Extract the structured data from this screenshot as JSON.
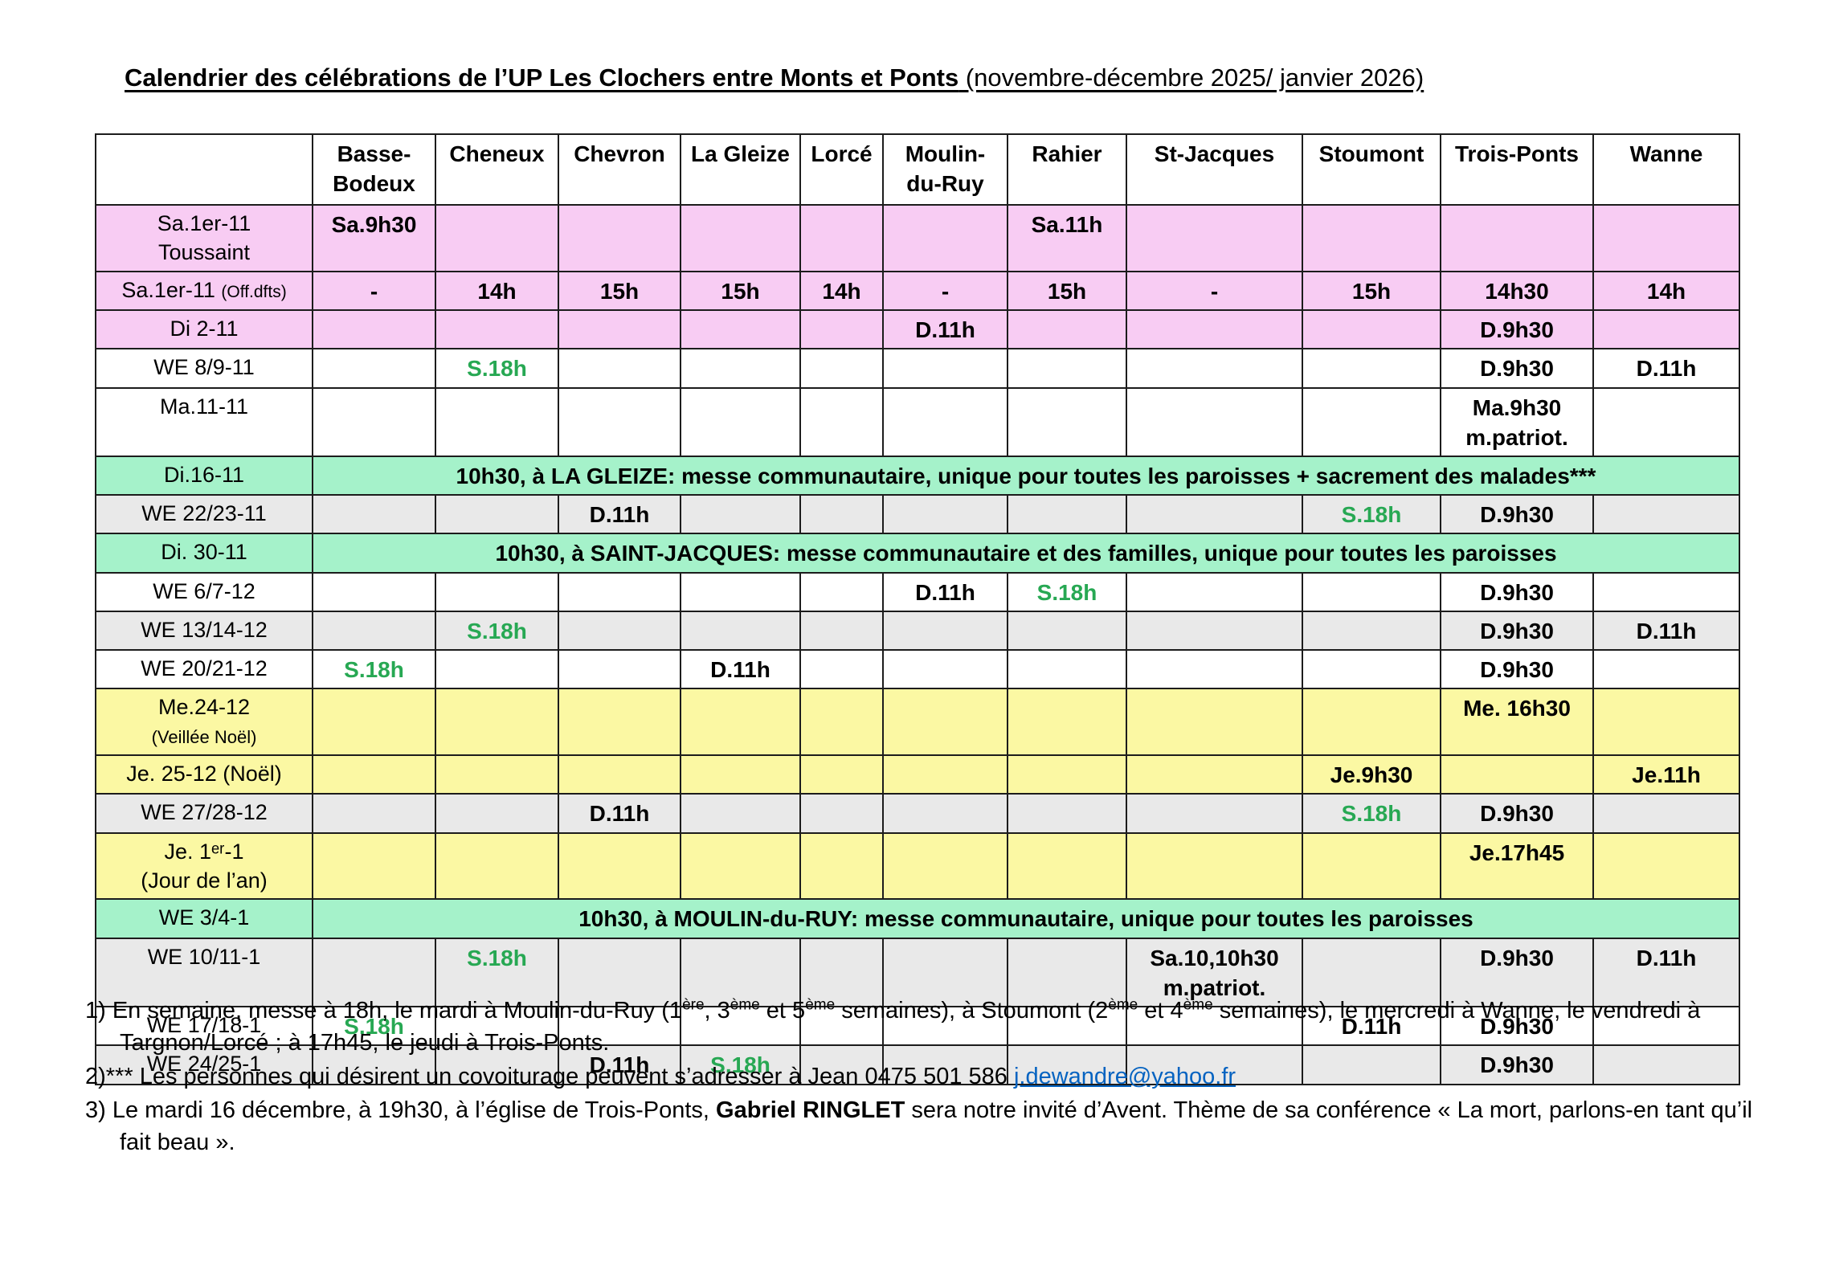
{
  "page": {
    "title_bold": "Calendrier des célébrations de l’UP Les Clochers entre Monts et Ponts",
    "title_normal": " (novembre-décembre 2025/ janvier 2026)"
  },
  "colors": {
    "row_pink": "#F8CCF3",
    "row_green": "#A5F2CA",
    "row_yellow": "#FBF8A3",
    "row_gray": "#E9E9E9",
    "time_green_text": "#27A853",
    "link_blue": "#0563C1",
    "border": "#1c1c1c"
  },
  "table": {
    "corner": "",
    "columns": [
      "Basse-\nBodeux",
      "Cheneux",
      "Chevron",
      "La Gleize",
      "Lorcé",
      "Moulin-\ndu-Ruy",
      "Rahier",
      "St-Jacques",
      "Stoumont",
      "Trois-Ponts",
      "Wanne"
    ],
    "rows": [
      {
        "bg": "pink",
        "label": {
          "main": "Sa.1er-11",
          "line2": "Toussaint"
        },
        "cells": [
          {
            "t": "Sa.9h30"
          },
          null,
          null,
          null,
          null,
          null,
          {
            "t": "Sa.11h"
          },
          null,
          null,
          null,
          null
        ]
      },
      {
        "bg": "pink",
        "label": {
          "main": "Sa.1er-11 ",
          "small": "(Off.dfts)"
        },
        "cells": [
          {
            "t": "-"
          },
          {
            "t": "14h"
          },
          {
            "t": "15h"
          },
          {
            "t": "15h"
          },
          {
            "t": "14h"
          },
          {
            "t": "-"
          },
          {
            "t": "15h"
          },
          {
            "t": "-"
          },
          {
            "t": "15h"
          },
          {
            "t": "14h30"
          },
          {
            "t": "14h"
          }
        ]
      },
      {
        "bg": "pink",
        "label": {
          "main": "Di 2-11"
        },
        "cells": [
          null,
          null,
          null,
          null,
          null,
          {
            "t": "D.11h"
          },
          null,
          null,
          null,
          {
            "t": "D.9h30"
          },
          null
        ]
      },
      {
        "bg": "white",
        "label": {
          "main": "WE 8/9-11"
        },
        "cells": [
          null,
          {
            "t": "S.18h",
            "green": true
          },
          null,
          null,
          null,
          null,
          null,
          null,
          null,
          {
            "t": "D.9h30"
          },
          {
            "t": "D.11h"
          }
        ]
      },
      {
        "bg": "white",
        "label": {
          "main": "Ma.11-11"
        },
        "cells": [
          null,
          null,
          null,
          null,
          null,
          null,
          null,
          null,
          null,
          {
            "t": "Ma.9h30\nm.patriot."
          },
          null
        ]
      },
      {
        "bg": "green",
        "label": {
          "main": "Di.16-11"
        },
        "banner": "10h30, à LA GLEIZE: messe communautaire, unique pour toutes les paroisses + sacrement des malades***"
      },
      {
        "bg": "gray",
        "label": {
          "main": "WE 22/23-11"
        },
        "cells": [
          null,
          null,
          {
            "t": "D.11h"
          },
          null,
          null,
          null,
          null,
          null,
          {
            "t": "S.18h",
            "green": true
          },
          {
            "t": "D.9h30"
          },
          null
        ]
      },
      {
        "bg": "green",
        "label": {
          "main": "Di. 30-11"
        },
        "banner": "10h30, à SAINT-JACQUES: messe communautaire et des familles, unique pour toutes les paroisses"
      },
      {
        "bg": "white",
        "label": {
          "main": "WE 6/7-12"
        },
        "cells": [
          null,
          null,
          null,
          null,
          null,
          {
            "t": "D.11h"
          },
          {
            "t": "S.18h",
            "green": true
          },
          null,
          null,
          {
            "t": "D.9h30"
          },
          null
        ]
      },
      {
        "bg": "gray",
        "label": {
          "main": "WE 13/14-12"
        },
        "cells": [
          null,
          {
            "t": "S.18h",
            "green": true
          },
          null,
          null,
          null,
          null,
          null,
          null,
          null,
          {
            "t": "D.9h30"
          },
          {
            "t": "D.11h"
          }
        ]
      },
      {
        "bg": "white",
        "label": {
          "main": "WE 20/21-12"
        },
        "cells": [
          {
            "t": "S.18h",
            "green": true
          },
          null,
          null,
          {
            "t": "D.11h"
          },
          null,
          null,
          null,
          null,
          null,
          {
            "t": "D.9h30"
          },
          null
        ]
      },
      {
        "bg": "yellow",
        "label": {
          "main": "Me.24-12",
          "line2": "(Veillée Noël)",
          "line2_small": true
        },
        "cells": [
          null,
          null,
          null,
          null,
          null,
          null,
          null,
          null,
          null,
          {
            "t": "Me. 16h30"
          },
          null
        ]
      },
      {
        "bg": "yellow",
        "label": {
          "main": "Je. 25-12 (Noël)"
        },
        "cells": [
          null,
          null,
          null,
          null,
          null,
          null,
          null,
          null,
          {
            "t": "Je.9h30"
          },
          null,
          {
            "t": "Je.11h"
          }
        ]
      },
      {
        "bg": "gray",
        "label": {
          "main": "WE 27/28-12"
        },
        "cells": [
          null,
          null,
          {
            "t": "D.11h"
          },
          null,
          null,
          null,
          null,
          null,
          {
            "t": "S.18h",
            "green": true
          },
          {
            "t": "D.9h30"
          },
          null
        ]
      },
      {
        "bg": "yellow",
        "label": {
          "main": "Je. 1ᵉʳ-1",
          "line2": "(Jour de l’an)"
        },
        "cells": [
          null,
          null,
          null,
          null,
          null,
          null,
          null,
          null,
          null,
          {
            "t": "Je.17h45"
          },
          null
        ]
      },
      {
        "bg": "green",
        "label": {
          "main": "WE 3/4-1"
        },
        "banner": "10h30, à MOULIN-du-RUY: messe communautaire, unique pour toutes les paroisses"
      },
      {
        "bg": "gray",
        "label": {
          "main": "WE 10/11-1"
        },
        "cells": [
          null,
          {
            "t": "S.18h",
            "green": true
          },
          null,
          null,
          null,
          null,
          null,
          {
            "t": "Sa.10,10h30\nm.patriot."
          },
          null,
          {
            "t": "D.9h30"
          },
          {
            "t": "D.11h"
          }
        ]
      },
      {
        "bg": "white",
        "label": {
          "main": "WE 17/18-1"
        },
        "cells": [
          {
            "t": "S.18h",
            "green": true
          },
          null,
          null,
          null,
          null,
          null,
          null,
          null,
          {
            "t": "D.11h"
          },
          {
            "t": "D.9h30"
          },
          null
        ]
      },
      {
        "bg": "gray",
        "label": {
          "main": "WE 24/25-1"
        },
        "cells": [
          null,
          null,
          {
            "t": "D.11h"
          },
          {
            "t": "S.18h",
            "green": true
          },
          null,
          null,
          null,
          null,
          null,
          {
            "t": "D.9h30"
          },
          null
        ]
      }
    ]
  },
  "footnotes": [
    {
      "segments": [
        {
          "t": "1)  En semaine, messe à 18h, le mardi à Moulin-du-Ruy (1"
        },
        {
          "t": "ère",
          "s": "sup"
        },
        {
          "t": ", 3"
        },
        {
          "t": "ème",
          "s": "sup"
        },
        {
          "t": " et 5"
        },
        {
          "t": "ème",
          "s": "sup"
        },
        {
          "t": " semaines), à Stoumont (2"
        },
        {
          "t": "ème",
          "s": "sup"
        },
        {
          "t": " et 4"
        },
        {
          "t": "ème",
          "s": "sup"
        },
        {
          "t": " semaines), le mercredi à Wanne, le vendredi à Targnon/Lorcé ; à 17h45, le jeudi à Trois-Ponts."
        }
      ]
    },
    {
      "segments": [
        {
          "t": "2)*** Les personnes qui désirent un covoiturage peuvent s’adresser à Jean  0475 501 586  "
        },
        {
          "t": "j.dewandre@yahoo.fr",
          "s": "link"
        }
      ]
    },
    {
      "segments": [
        {
          "t": "3) Le mardi 16 décembre, à 19h30, à l’église de Trois-Ponts, "
        },
        {
          "t": "Gabriel RINGLET",
          "s": "bold"
        },
        {
          "t": " sera notre invité d’Avent. Thème de sa conférence « La mort, parlons-en tant qu’il fait beau »."
        }
      ]
    }
  ]
}
